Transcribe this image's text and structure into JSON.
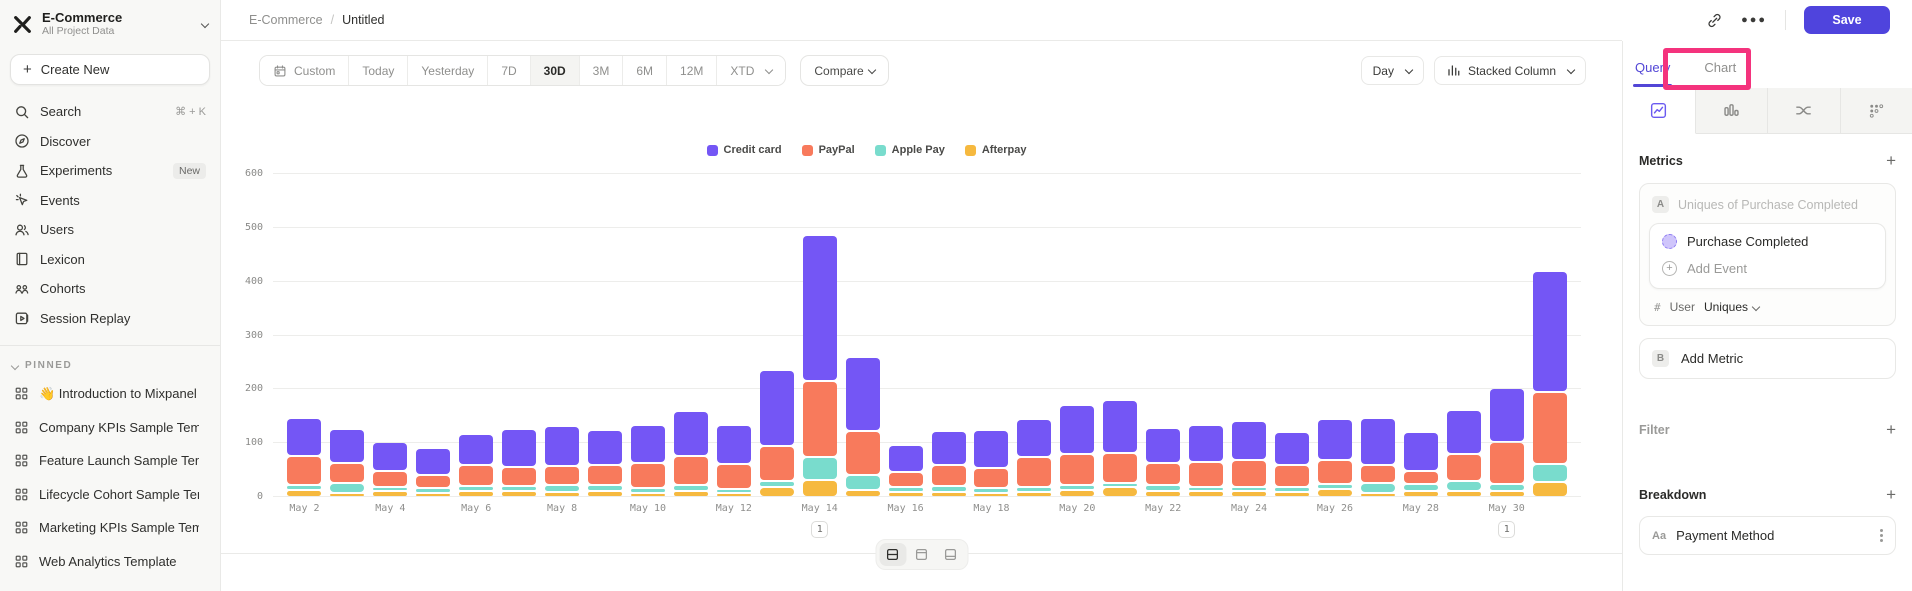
{
  "sidebar": {
    "workspace": {
      "name": "E-Commerce",
      "subtitle": "All Project Data"
    },
    "create_new_label": "Create New",
    "nav": [
      {
        "label": "Search",
        "shortcut": "⌘ + K",
        "icon": "search-icon"
      },
      {
        "label": "Discover",
        "icon": "discover-icon"
      },
      {
        "label": "Experiments",
        "badge": "New",
        "icon": "experiments-icon"
      },
      {
        "label": "Events",
        "icon": "events-icon"
      },
      {
        "label": "Users",
        "icon": "users-icon"
      },
      {
        "label": "Lexicon",
        "icon": "lexicon-icon"
      },
      {
        "label": "Cohorts",
        "icon": "cohorts-icon"
      },
      {
        "label": "Session Replay",
        "icon": "session-replay-icon"
      }
    ],
    "pinned_header": "PINNED",
    "pinned": [
      {
        "label": "👋 Introduction to Mixpanel Boards"
      },
      {
        "label": "Company KPIs Sample Template"
      },
      {
        "label": "Feature Launch Sample Template"
      },
      {
        "label": "Lifecycle Cohort Sample Template"
      },
      {
        "label": "Marketing KPIs Sample Template"
      },
      {
        "label": "Web Analytics Template"
      }
    ]
  },
  "header": {
    "breadcrumb_root": "E-Commerce",
    "breadcrumb_sep": "/",
    "breadcrumb_current": "Untitled",
    "save_label": "Save"
  },
  "toolbar": {
    "date_ranges": [
      {
        "label": "Custom",
        "calendar_icon": true
      },
      {
        "label": "Today"
      },
      {
        "label": "Yesterday"
      },
      {
        "label": "7D"
      },
      {
        "label": "30D",
        "active": true
      },
      {
        "label": "3M"
      },
      {
        "label": "6M"
      },
      {
        "label": "12M"
      },
      {
        "label": "XTD",
        "chevron": true
      }
    ],
    "compare_label": "Compare",
    "granularity_label": "Day",
    "chart_type_label": "Stacked Column"
  },
  "panel": {
    "tab_query": "Query",
    "tab_chart": "Chart",
    "metrics_title": "Metrics",
    "metric_a_chip": "A",
    "metric_a_placeholder": "Uniques of Purchase Completed",
    "event_name": "Purchase Completed",
    "add_event_label": "Add Event",
    "agg_hash": "#",
    "agg_entity": "User",
    "agg_fn": "Uniques",
    "metric_b_chip": "B",
    "add_metric_label": "Add Metric",
    "filter_title": "Filter",
    "breakdown_title": "Breakdown",
    "breakdown_prefix": "Aa",
    "breakdown_label": "Payment Method"
  },
  "chart_data": {
    "type": "bar",
    "stacked": true,
    "x": [
      "May 2",
      "May 3",
      "May 4",
      "May 5",
      "May 6",
      "May 7",
      "May 8",
      "May 9",
      "May 10",
      "May 11",
      "May 12",
      "May 13",
      "May 14",
      "May 15",
      "May 16",
      "May 17",
      "May 18",
      "May 19",
      "May 20",
      "May 21",
      "May 22",
      "May 23",
      "May 24",
      "May 25",
      "May 26",
      "May 27",
      "May 28",
      "May 29",
      "May 30",
      "May 31"
    ],
    "x_label_every": 2,
    "series": [
      {
        "name": "Credit card",
        "color": "#7456f5",
        "values": [
          71,
          63,
          54,
          50,
          57,
          71,
          75,
          65,
          72,
          83,
          72,
          140,
          270,
          139,
          50,
          62,
          71,
          72,
          92,
          100,
          64,
          68,
          71,
          61,
          77,
          88,
          71,
          81,
          100,
          224
        ]
      },
      {
        "name": "PayPal",
        "color": "#f87a5c",
        "values": [
          54,
          37,
          29,
          25,
          39,
          36,
          35,
          38,
          45,
          55,
          46,
          65,
          141,
          81,
          28,
          40,
          38,
          56,
          58,
          55,
          42,
          46,
          50,
          42,
          44,
          34,
          25,
          50,
          78,
          134
        ]
      },
      {
        "name": "Apple Pay",
        "color": "#79dccd",
        "values": [
          8,
          19,
          6,
          8,
          9,
          8,
          12,
          10,
          10,
          10,
          6,
          12,
          44,
          28,
          9,
          10,
          8,
          9,
          9,
          8,
          10,
          5,
          6,
          9,
          9,
          18,
          12,
          18,
          12,
          34
        ]
      },
      {
        "name": "Afterpay",
        "color": "#f6b93f",
        "values": [
          14,
          5,
          12,
          8,
          12,
          12,
          10,
          12,
          6,
          12,
          4,
          18,
          31,
          13,
          9,
          10,
          8,
          9,
          13,
          18,
          12,
          12,
          12,
          9,
          15,
          6,
          12,
          12,
          12,
          28
        ]
      }
    ],
    "ylim": [
      0,
      600
    ],
    "yticks": [
      0,
      100,
      200,
      300,
      400,
      500,
      600
    ],
    "grid": true,
    "legend_position": "top-center",
    "annotations": [
      {
        "x": "May 14",
        "label": "1"
      },
      {
        "x": "May 30",
        "label": "1"
      }
    ]
  }
}
